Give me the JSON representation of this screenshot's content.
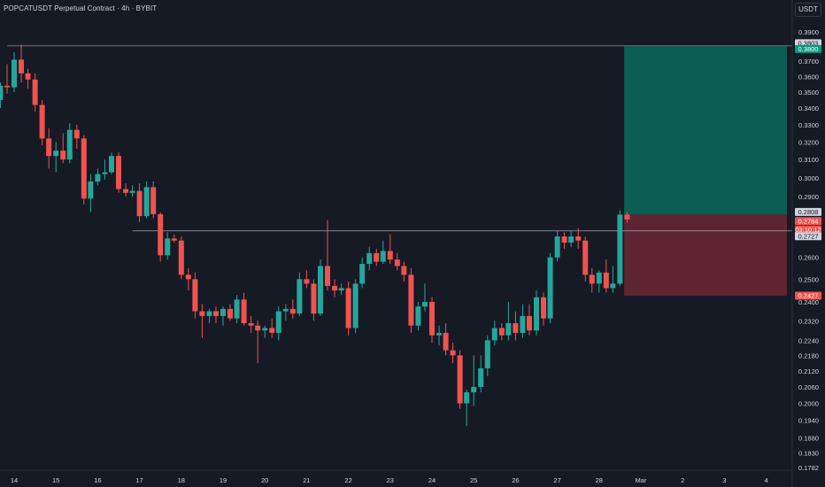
{
  "header": {
    "title": "POPCATUSDT Perpetual Contract · 4h · BYBIT",
    "currency": "USDT"
  },
  "colors": {
    "background": "#161a25",
    "up": "#26a69a",
    "down": "#ef5350",
    "target_zone": "#0b5e52",
    "stop_zone": "#5f2431",
    "text": "#d1d4dc",
    "line": "#b2b5be"
  },
  "chart_data": {
    "type": "candlestick",
    "title": "POPCATUSDT Perpetual Contract · 4h · BYBIT",
    "y_axis": {
      "scale": "log",
      "ticks": [
        "0.3900",
        "0.3700",
        "0.3600",
        "0.3500",
        "0.3400",
        "0.3300",
        "0.3200",
        "0.3100",
        "0.3000",
        "0.2900",
        "0.2700",
        "0.2600",
        "0.2500",
        "0.2400",
        "0.2320",
        "0.2240",
        "0.2180",
        "0.2120",
        "0.2060",
        "0.2000",
        "0.1940",
        "0.1880",
        "0.1830",
        "0.1782"
      ],
      "range": [
        0.1782,
        0.395
      ]
    },
    "x_axis": {
      "ticks": [
        "14",
        "15",
        "16",
        "17",
        "18",
        "19",
        "20",
        "21",
        "22",
        "23",
        "24",
        "25",
        "26",
        "27",
        "28",
        "Mar",
        "2",
        "3",
        "4"
      ]
    },
    "price_labels": [
      {
        "text": "0.3803",
        "value": 0.3803,
        "kind": "level"
      },
      {
        "text": "0.3800",
        "value": 0.38,
        "kind": "target"
      },
      {
        "text": "0.2808",
        "value": 0.2808,
        "kind": "entry"
      },
      {
        "text": "0.2784",
        "value": 0.2784,
        "kind": "last"
      },
      {
        "text": "03:10:12",
        "value": 0.2755,
        "kind": "countdown"
      },
      {
        "text": "0.2727",
        "value": 0.2727,
        "kind": "level"
      },
      {
        "text": "0.2427",
        "value": 0.2427,
        "kind": "stop"
      }
    ],
    "horizontal_levels": [
      {
        "value": 0.3803,
        "from": "14",
        "to": "4"
      },
      {
        "value": 0.2727,
        "from": "17",
        "to": "4"
      }
    ],
    "position_zone": {
      "entry": 0.2808,
      "target": 0.38,
      "stop": 0.2427,
      "from_x": 28.6,
      "to_x": 32.2
    },
    "candles": [
      {
        "x": 13.0,
        "o": 0.278,
        "h": 0.287,
        "l": 0.268,
        "c": 0.285
      },
      {
        "x": 13.17,
        "o": 0.285,
        "h": 0.312,
        "l": 0.284,
        "c": 0.31
      },
      {
        "x": 13.33,
        "o": 0.31,
        "h": 0.323,
        "l": 0.305,
        "c": 0.321
      },
      {
        "x": 13.5,
        "o": 0.321,
        "h": 0.348,
        "l": 0.319,
        "c": 0.345
      },
      {
        "x": 13.67,
        "o": 0.345,
        "h": 0.356,
        "l": 0.34,
        "c": 0.354
      },
      {
        "x": 13.83,
        "o": 0.354,
        "h": 0.368,
        "l": 0.349,
        "c": 0.353
      },
      {
        "x": 14.0,
        "o": 0.353,
        "h": 0.376,
        "l": 0.35,
        "c": 0.371
      },
      {
        "x": 14.17,
        "o": 0.371,
        "h": 0.381,
        "l": 0.356,
        "c": 0.362
      },
      {
        "x": 14.33,
        "o": 0.362,
        "h": 0.365,
        "l": 0.352,
        "c": 0.358
      },
      {
        "x": 14.5,
        "o": 0.358,
        "h": 0.362,
        "l": 0.338,
        "c": 0.342
      },
      {
        "x": 14.67,
        "o": 0.342,
        "h": 0.345,
        "l": 0.318,
        "c": 0.322
      },
      {
        "x": 14.83,
        "o": 0.322,
        "h": 0.328,
        "l": 0.305,
        "c": 0.312
      },
      {
        "x": 15.0,
        "o": 0.312,
        "h": 0.32,
        "l": 0.303,
        "c": 0.315
      },
      {
        "x": 15.17,
        "o": 0.315,
        "h": 0.325,
        "l": 0.308,
        "c": 0.31
      },
      {
        "x": 15.33,
        "o": 0.31,
        "h": 0.331,
        "l": 0.308,
        "c": 0.327
      },
      {
        "x": 15.5,
        "o": 0.327,
        "h": 0.33,
        "l": 0.316,
        "c": 0.322
      },
      {
        "x": 15.67,
        "o": 0.322,
        "h": 0.324,
        "l": 0.286,
        "c": 0.289
      },
      {
        "x": 15.83,
        "o": 0.289,
        "h": 0.302,
        "l": 0.282,
        "c": 0.298
      },
      {
        "x": 16.0,
        "o": 0.298,
        "h": 0.305,
        "l": 0.296,
        "c": 0.302
      },
      {
        "x": 16.17,
        "o": 0.302,
        "h": 0.31,
        "l": 0.299,
        "c": 0.303
      },
      {
        "x": 16.33,
        "o": 0.303,
        "h": 0.314,
        "l": 0.302,
        "c": 0.312
      },
      {
        "x": 16.5,
        "o": 0.312,
        "h": 0.314,
        "l": 0.292,
        "c": 0.294
      },
      {
        "x": 16.67,
        "o": 0.294,
        "h": 0.297,
        "l": 0.29,
        "c": 0.292
      },
      {
        "x": 16.83,
        "o": 0.292,
        "h": 0.296,
        "l": 0.29,
        "c": 0.293
      },
      {
        "x": 17.0,
        "o": 0.293,
        "h": 0.297,
        "l": 0.277,
        "c": 0.28
      },
      {
        "x": 17.17,
        "o": 0.28,
        "h": 0.298,
        "l": 0.279,
        "c": 0.295
      },
      {
        "x": 17.33,
        "o": 0.295,
        "h": 0.298,
        "l": 0.279,
        "c": 0.281
      },
      {
        "x": 17.5,
        "o": 0.281,
        "h": 0.282,
        "l": 0.258,
        "c": 0.261
      },
      {
        "x": 17.67,
        "o": 0.261,
        "h": 0.272,
        "l": 0.259,
        "c": 0.269
      },
      {
        "x": 17.83,
        "o": 0.269,
        "h": 0.271,
        "l": 0.267,
        "c": 0.268
      },
      {
        "x": 18.0,
        "o": 0.268,
        "h": 0.27,
        "l": 0.25,
        "c": 0.252
      },
      {
        "x": 18.17,
        "o": 0.252,
        "h": 0.255,
        "l": 0.245,
        "c": 0.25
      },
      {
        "x": 18.33,
        "o": 0.25,
        "h": 0.253,
        "l": 0.233,
        "c": 0.236
      },
      {
        "x": 18.5,
        "o": 0.236,
        "h": 0.239,
        "l": 0.225,
        "c": 0.234
      },
      {
        "x": 18.67,
        "o": 0.234,
        "h": 0.237,
        "l": 0.231,
        "c": 0.236
      },
      {
        "x": 18.83,
        "o": 0.236,
        "h": 0.238,
        "l": 0.231,
        "c": 0.234
      },
      {
        "x": 19.0,
        "o": 0.234,
        "h": 0.238,
        "l": 0.23,
        "c": 0.237
      },
      {
        "x": 19.17,
        "o": 0.237,
        "h": 0.239,
        "l": 0.232,
        "c": 0.233
      },
      {
        "x": 19.33,
        "o": 0.233,
        "h": 0.243,
        "l": 0.231,
        "c": 0.241
      },
      {
        "x": 19.5,
        "o": 0.241,
        "h": 0.244,
        "l": 0.23,
        "c": 0.231
      },
      {
        "x": 19.67,
        "o": 0.231,
        "h": 0.234,
        "l": 0.227,
        "c": 0.23
      },
      {
        "x": 19.83,
        "o": 0.23,
        "h": 0.232,
        "l": 0.215,
        "c": 0.228
      },
      {
        "x": 20.0,
        "o": 0.228,
        "h": 0.23,
        "l": 0.225,
        "c": 0.229
      },
      {
        "x": 20.17,
        "o": 0.229,
        "h": 0.233,
        "l": 0.225,
        "c": 0.227
      },
      {
        "x": 20.33,
        "o": 0.227,
        "h": 0.238,
        "l": 0.224,
        "c": 0.236
      },
      {
        "x": 20.5,
        "o": 0.236,
        "h": 0.239,
        "l": 0.232,
        "c": 0.237
      },
      {
        "x": 20.67,
        "o": 0.237,
        "h": 0.241,
        "l": 0.233,
        "c": 0.235
      },
      {
        "x": 20.83,
        "o": 0.235,
        "h": 0.253,
        "l": 0.234,
        "c": 0.25
      },
      {
        "x": 21.0,
        "o": 0.25,
        "h": 0.254,
        "l": 0.246,
        "c": 0.248
      },
      {
        "x": 21.17,
        "o": 0.248,
        "h": 0.25,
        "l": 0.232,
        "c": 0.235
      },
      {
        "x": 21.33,
        "o": 0.235,
        "h": 0.259,
        "l": 0.234,
        "c": 0.256
      },
      {
        "x": 21.5,
        "o": 0.256,
        "h": 0.278,
        "l": 0.245,
        "c": 0.247
      },
      {
        "x": 21.67,
        "o": 0.247,
        "h": 0.25,
        "l": 0.242,
        "c": 0.245
      },
      {
        "x": 21.83,
        "o": 0.245,
        "h": 0.248,
        "l": 0.243,
        "c": 0.246
      },
      {
        "x": 22.0,
        "o": 0.246,
        "h": 0.249,
        "l": 0.226,
        "c": 0.229
      },
      {
        "x": 22.17,
        "o": 0.229,
        "h": 0.25,
        "l": 0.227,
        "c": 0.248
      },
      {
        "x": 22.33,
        "o": 0.248,
        "h": 0.26,
        "l": 0.246,
        "c": 0.257
      },
      {
        "x": 22.5,
        "o": 0.257,
        "h": 0.265,
        "l": 0.254,
        "c": 0.262
      },
      {
        "x": 22.67,
        "o": 0.262,
        "h": 0.264,
        "l": 0.256,
        "c": 0.258
      },
      {
        "x": 22.83,
        "o": 0.258,
        "h": 0.268,
        "l": 0.257,
        "c": 0.263
      },
      {
        "x": 23.0,
        "o": 0.263,
        "h": 0.271,
        "l": 0.257,
        "c": 0.259
      },
      {
        "x": 23.17,
        "o": 0.259,
        "h": 0.262,
        "l": 0.254,
        "c": 0.256
      },
      {
        "x": 23.33,
        "o": 0.256,
        "h": 0.258,
        "l": 0.249,
        "c": 0.252
      },
      {
        "x": 23.5,
        "o": 0.252,
        "h": 0.255,
        "l": 0.227,
        "c": 0.23
      },
      {
        "x": 23.67,
        "o": 0.23,
        "h": 0.24,
        "l": 0.228,
        "c": 0.238
      },
      {
        "x": 23.83,
        "o": 0.238,
        "h": 0.248,
        "l": 0.236,
        "c": 0.24
      },
      {
        "x": 24.0,
        "o": 0.24,
        "h": 0.242,
        "l": 0.223,
        "c": 0.226
      },
      {
        "x": 24.17,
        "o": 0.226,
        "h": 0.23,
        "l": 0.222,
        "c": 0.227
      },
      {
        "x": 24.33,
        "o": 0.227,
        "h": 0.231,
        "l": 0.218,
        "c": 0.22
      },
      {
        "x": 24.5,
        "o": 0.22,
        "h": 0.223,
        "l": 0.215,
        "c": 0.218
      },
      {
        "x": 24.67,
        "o": 0.218,
        "h": 0.22,
        "l": 0.198,
        "c": 0.2
      },
      {
        "x": 24.83,
        "o": 0.2,
        "h": 0.205,
        "l": 0.192,
        "c": 0.204
      },
      {
        "x": 25.0,
        "o": 0.204,
        "h": 0.218,
        "l": 0.199,
        "c": 0.206
      },
      {
        "x": 25.17,
        "o": 0.206,
        "h": 0.218,
        "l": 0.204,
        "c": 0.213
      },
      {
        "x": 25.33,
        "o": 0.213,
        "h": 0.226,
        "l": 0.21,
        "c": 0.224
      },
      {
        "x": 25.5,
        "o": 0.224,
        "h": 0.232,
        "l": 0.222,
        "c": 0.229
      },
      {
        "x": 25.67,
        "o": 0.229,
        "h": 0.231,
        "l": 0.224,
        "c": 0.226
      },
      {
        "x": 25.83,
        "o": 0.226,
        "h": 0.24,
        "l": 0.224,
        "c": 0.231
      },
      {
        "x": 26.0,
        "o": 0.231,
        "h": 0.236,
        "l": 0.224,
        "c": 0.227
      },
      {
        "x": 26.17,
        "o": 0.227,
        "h": 0.239,
        "l": 0.225,
        "c": 0.234
      },
      {
        "x": 26.33,
        "o": 0.234,
        "h": 0.239,
        "l": 0.226,
        "c": 0.228
      },
      {
        "x": 26.5,
        "o": 0.228,
        "h": 0.245,
        "l": 0.226,
        "c": 0.242
      },
      {
        "x": 26.67,
        "o": 0.242,
        "h": 0.244,
        "l": 0.23,
        "c": 0.233
      },
      {
        "x": 26.83,
        "o": 0.233,
        "h": 0.262,
        "l": 0.231,
        "c": 0.26
      },
      {
        "x": 27.0,
        "o": 0.26,
        "h": 0.273,
        "l": 0.258,
        "c": 0.27
      },
      {
        "x": 27.17,
        "o": 0.27,
        "h": 0.272,
        "l": 0.264,
        "c": 0.267
      },
      {
        "x": 27.33,
        "o": 0.267,
        "h": 0.273,
        "l": 0.265,
        "c": 0.27
      },
      {
        "x": 27.5,
        "o": 0.27,
        "h": 0.274,
        "l": 0.264,
        "c": 0.268
      },
      {
        "x": 27.67,
        "o": 0.268,
        "h": 0.27,
        "l": 0.249,
        "c": 0.252
      },
      {
        "x": 27.83,
        "o": 0.252,
        "h": 0.255,
        "l": 0.244,
        "c": 0.248
      },
      {
        "x": 28.0,
        "o": 0.248,
        "h": 0.254,
        "l": 0.244,
        "c": 0.253
      },
      {
        "x": 28.17,
        "o": 0.253,
        "h": 0.259,
        "l": 0.244,
        "c": 0.246
      },
      {
        "x": 28.33,
        "o": 0.246,
        "h": 0.256,
        "l": 0.244,
        "c": 0.248
      },
      {
        "x": 28.5,
        "o": 0.248,
        "h": 0.283,
        "l": 0.247,
        "c": 0.2808
      },
      {
        "x": 28.67,
        "o": 0.2808,
        "h": 0.282,
        "l": 0.277,
        "c": 0.2784
      }
    ]
  }
}
